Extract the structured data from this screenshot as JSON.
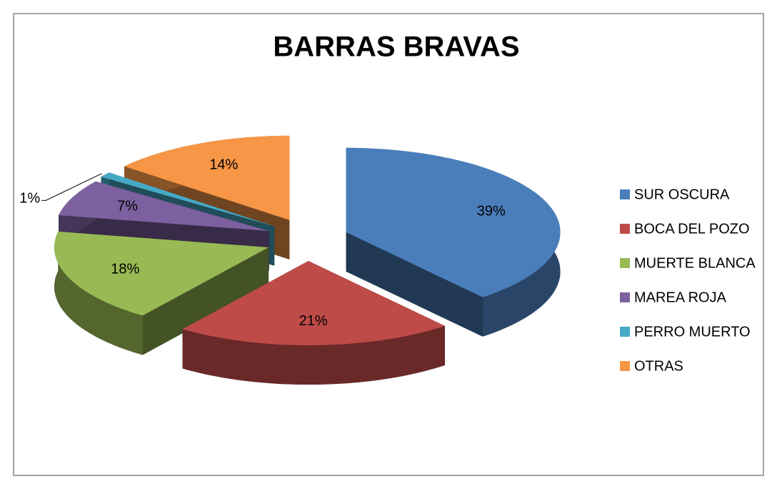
{
  "chart_data": {
    "type": "pie3d",
    "title": "BARRAS BRAVAS",
    "categories": [
      "SUR OSCURA",
      "BOCA DEL POZO",
      "MUERTE BLANCA",
      "MAREA ROJA",
      "PERRO MUERTO",
      "OTRAS"
    ],
    "values": [
      39,
      21,
      18,
      7,
      1,
      14
    ],
    "value_labels": [
      "39%",
      "21%",
      "18%",
      "7%",
      "1%",
      "14%"
    ],
    "colors": [
      "#4a7ebb",
      "#be4b48",
      "#98b954",
      "#7d60a0",
      "#46aac5",
      "#f79646"
    ],
    "legend": "right"
  }
}
